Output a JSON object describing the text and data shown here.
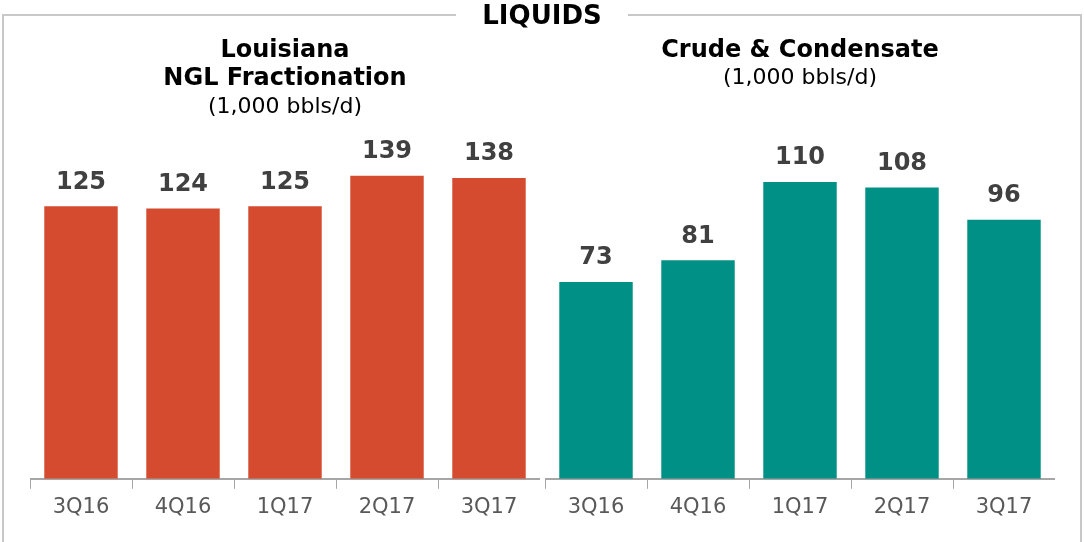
{
  "chart_data": [
    {
      "type": "bar",
      "title": "Louisiana\nNGL Fractionation",
      "subtitle": "(1,000 bbls/d)",
      "annotations": [
        "LIQUIDS"
      ],
      "categories": [
        "3Q16",
        "4Q16",
        "1Q17",
        "2Q17",
        "3Q17"
      ],
      "values": [
        125,
        124,
        125,
        139,
        138
      ],
      "color": "#d54b2f",
      "data_labels": true,
      "tick_labels": "x"
    },
    {
      "type": "bar",
      "title": "Crude & Condensate",
      "subtitle": "(1,000 bbls/d)",
      "categories": [
        "3Q16",
        "4Q16",
        "1Q17",
        "2Q17",
        "3Q17"
      ],
      "values": [
        73,
        81,
        110,
        108,
        96
      ],
      "color": "#009085",
      "data_labels": true,
      "tick_labels": "x"
    }
  ]
}
